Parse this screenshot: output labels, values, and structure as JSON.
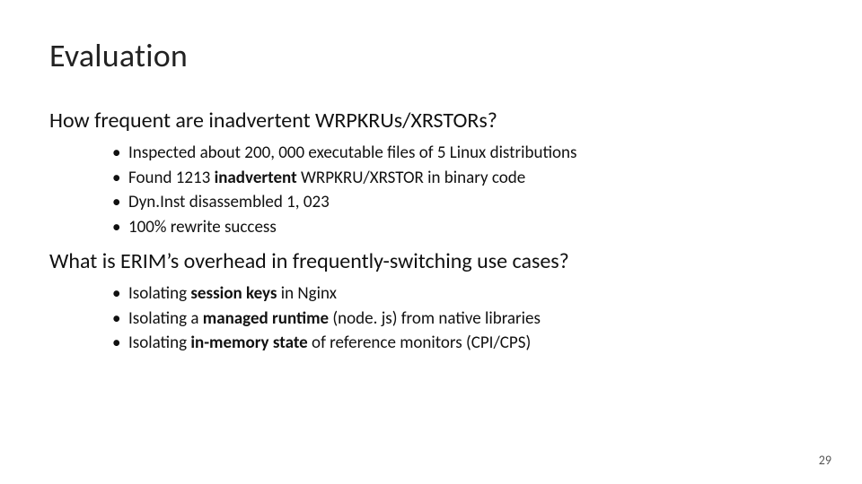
{
  "title": "Evaluation",
  "page_number": "29",
  "section1": {
    "heading": "How frequent are inadvertent WRPKRUs/XRSTORs?",
    "bullets": [
      {
        "segs": [
          {
            "t": "Inspected about 200, 000 executable files of 5 Linux distributions",
            "b": false
          }
        ]
      },
      {
        "segs": [
          {
            "t": "Found 1213 ",
            "b": false
          },
          {
            "t": "inadvertent ",
            "b": true
          },
          {
            "t": "WRPKRU/XRSTOR  in binary code",
            "b": false
          }
        ]
      },
      {
        "segs": [
          {
            "t": "Dyn.Inst disassembled 1, 023",
            "b": false
          }
        ]
      },
      {
        "segs": [
          {
            "t": "100% rewrite success",
            "b": false
          }
        ]
      }
    ]
  },
  "section2": {
    "heading": "What is ERIM’s overhead in frequently-switching use cases?",
    "bullets": [
      {
        "segs": [
          {
            "t": "Isolating ",
            "b": false
          },
          {
            "t": "session keys ",
            "b": true
          },
          {
            "t": "in Nginx",
            "b": false
          }
        ]
      },
      {
        "segs": [
          {
            "t": "Isolating a ",
            "b": false
          },
          {
            "t": "managed runtime ",
            "b": true
          },
          {
            "t": "(node. js) from native libraries",
            "b": false
          }
        ]
      },
      {
        "segs": [
          {
            "t": "Isolating ",
            "b": false
          },
          {
            "t": "in-memory state ",
            "b": true
          },
          {
            "t": "of reference monitors (CPI/CPS)",
            "b": false
          }
        ]
      }
    ]
  },
  "style": {
    "title_fontsize": 36,
    "heading_fontsize": 24,
    "bullet_fontsize": 19,
    "text_color": "#111111",
    "background_color": "#ffffff",
    "page_num_fontsize": 14,
    "page_num_color": "#555555"
  }
}
